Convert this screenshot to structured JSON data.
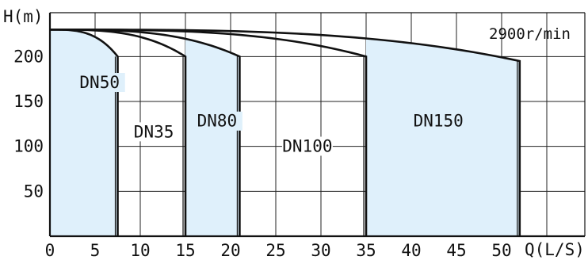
{
  "chart_data": {
    "type": "area",
    "xlabel": "Q(L/S)",
    "ylabel": "H(m)",
    "speed_label": "2900r/min",
    "xlim": [
      0,
      60
    ],
    "ylim": [
      0,
      240
    ],
    "x_ticks": [
      0,
      5,
      10,
      15,
      20,
      25,
      30,
      35,
      40,
      45,
      50
    ],
    "y_ticks": [
      50,
      100,
      150,
      200
    ],
    "grid": true,
    "fill_color": "#dff0fb",
    "line_color": "#111111",
    "curves": [
      {
        "name": "DN50",
        "q_min": 0,
        "q_max": 7.5,
        "h_start": 230,
        "h_end": 200,
        "shaded": true
      },
      {
        "name": "DN35",
        "q_min": 7.5,
        "q_max": 15,
        "h_start": 230,
        "h_end": 200,
        "shaded": false
      },
      {
        "name": "DN80",
        "q_min": 15,
        "q_max": 21,
        "h_start": 230,
        "h_end": 200,
        "shaded": true
      },
      {
        "name": "DN100",
        "q_min": 21,
        "q_max": 35,
        "h_start": 230,
        "h_end": 200,
        "shaded": false
      },
      {
        "name": "DN150",
        "q_min": 35,
        "q_max": 52,
        "h_start": 230,
        "h_end": 195,
        "shaded": true
      }
    ],
    "region_labels": [
      {
        "text": "DN50",
        "q": 5.5,
        "h": 165
      },
      {
        "text": "DN35",
        "q": 11.5,
        "h": 110
      },
      {
        "text": "DN80",
        "q": 18.5,
        "h": 122
      },
      {
        "text": "DN100",
        "q": 28.5,
        "h": 94
      },
      {
        "text": "DN150",
        "q": 43,
        "h": 122
      }
    ]
  }
}
